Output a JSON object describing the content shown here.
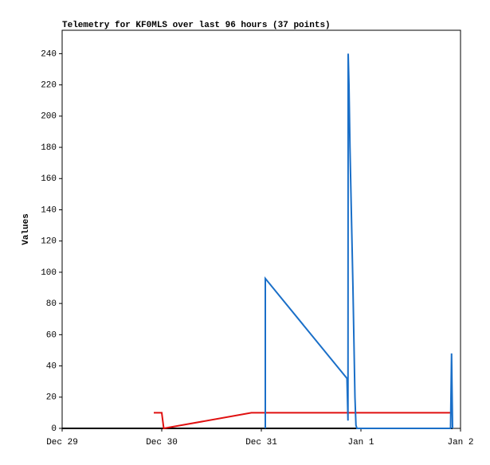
{
  "chart_data": {
    "type": "line",
    "title": "Telemetry for KF0MLS over last 96 hours (37 points)",
    "ylabel": "Values",
    "xlim": [
      0,
      4
    ],
    "xticks": [
      {
        "value": 0,
        "label": "Dec 29"
      },
      {
        "value": 1,
        "label": "Dec 30"
      },
      {
        "value": 2,
        "label": "Dec 31"
      },
      {
        "value": 3,
        "label": "Jan 1"
      },
      {
        "value": 4,
        "label": "Jan 2"
      }
    ],
    "ylim": [
      0,
      255
    ],
    "yticks": [
      0,
      20,
      40,
      60,
      80,
      100,
      120,
      140,
      160,
      180,
      200,
      220,
      240
    ],
    "series": [
      {
        "color": "#000000",
        "x": [
          0,
          3.92
        ],
        "values": [
          0,
          0
        ]
      },
      {
        "color": "#e01010",
        "x": [
          0.92,
          1.0,
          1.02,
          1.9,
          3.9
        ],
        "values": [
          10,
          10,
          0,
          10,
          10
        ]
      },
      {
        "color": "#1a6fc8",
        "x": [
          2.04,
          2.04,
          2.86,
          2.87,
          2.872,
          2.88,
          2.89,
          2.9,
          2.91,
          2.92,
          2.93,
          2.94,
          2.95,
          2.96,
          3.9,
          3.91,
          3.92
        ],
        "values": [
          0,
          96,
          32,
          5,
          240,
          220,
          180,
          150,
          120,
          90,
          55,
          20,
          2,
          0,
          0,
          48,
          0
        ]
      }
    ]
  }
}
